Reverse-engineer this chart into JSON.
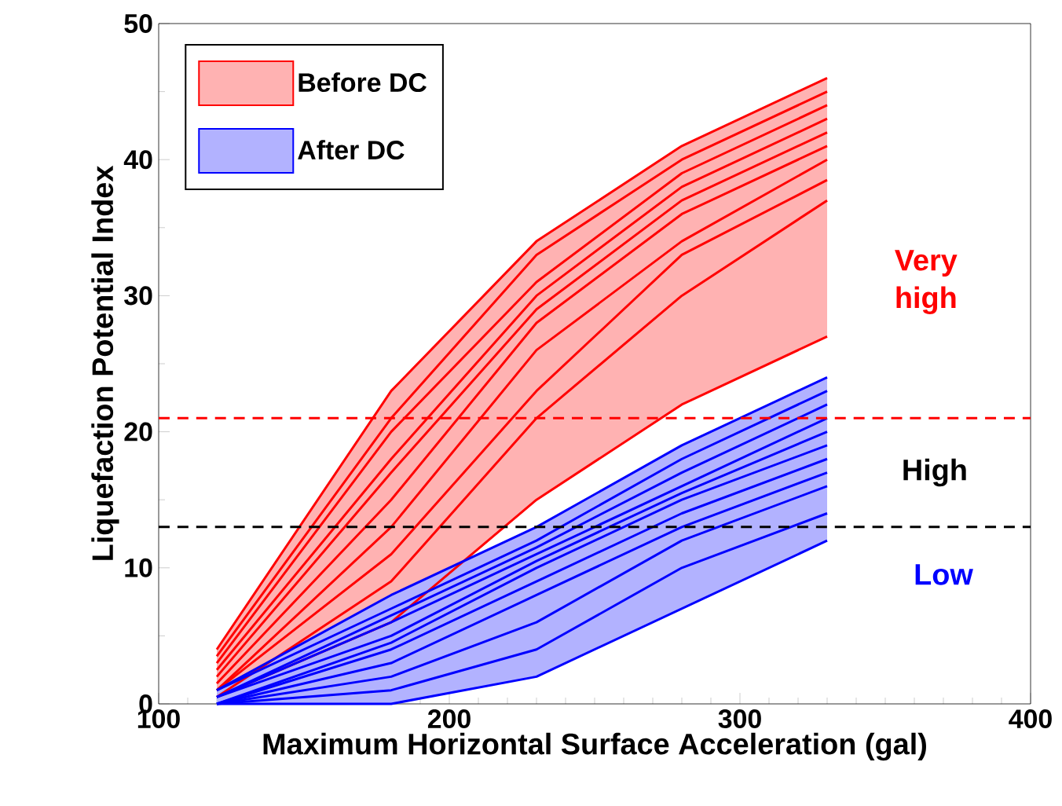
{
  "chart_data": {
    "type": "line",
    "xlabel": "Maximum Horizontal Surface Acceleration (gal)",
    "ylabel": "Liquefaction Potential Index",
    "xlim": [
      100,
      400
    ],
    "xticks": [
      100,
      200,
      300,
      400
    ],
    "ylim": [
      0,
      50
    ],
    "yticks": [
      0,
      10,
      20,
      30,
      40,
      50
    ],
    "grid": false,
    "legend": "top left",
    "marker": "none",
    "line_style": "solid",
    "x": [
      120,
      180,
      230,
      280,
      330
    ],
    "series": [
      {
        "name": "Before DC",
        "color": "#ff0000",
        "values": [
          4,
          23,
          34,
          41,
          46
        ],
        "lower": [
          0.5,
          6,
          15,
          22,
          27
        ],
        "upper": [
          4,
          23,
          34,
          41,
          46
        ]
      },
      {
        "color": "#ff0000",
        "values": [
          3.5,
          21,
          33,
          40,
          45
        ]
      },
      {
        "color": "#ff0000",
        "values": [
          3,
          20,
          31,
          39,
          44
        ]
      },
      {
        "color": "#ff0000",
        "values": [
          2.5,
          18,
          30,
          38,
          43
        ]
      },
      {
        "color": "#ff0000",
        "values": [
          2,
          17,
          29,
          37,
          42
        ]
      },
      {
        "color": "#ff0000",
        "values": [
          1.5,
          15,
          28,
          36,
          41
        ]
      },
      {
        "color": "#ff0000",
        "values": [
          1,
          13,
          26,
          34,
          40
        ]
      },
      {
        "color": "#ff0000",
        "values": [
          1,
          11,
          23,
          33,
          38.5
        ]
      },
      {
        "color": "#ff0000",
        "values": [
          0.5,
          9,
          21,
          30,
          37
        ]
      },
      {
        "color": "#ff0000",
        "values": [
          0.5,
          6,
          15,
          22,
          27
        ]
      },
      {
        "name": "After DC",
        "color": "#0000ff",
        "values": [
          1,
          8,
          13,
          19,
          24
        ],
        "lower": [
          0,
          0,
          2,
          7,
          12
        ],
        "upper": [
          1,
          8,
          13,
          19,
          24
        ]
      },
      {
        "color": "#0000ff",
        "values": [
          1,
          7,
          12,
          18,
          23
        ]
      },
      {
        "color": "#0000ff",
        "values": [
          0.5,
          6.5,
          11.5,
          17,
          22
        ]
      },
      {
        "color": "#0000ff",
        "values": [
          0.5,
          6,
          11,
          16,
          21
        ]
      },
      {
        "color": "#0000ff",
        "values": [
          0.5,
          5,
          10.5,
          15.5,
          20
        ]
      },
      {
        "color": "#0000ff",
        "values": [
          0,
          4.5,
          10,
          15,
          19
        ]
      },
      {
        "color": "#0000ff",
        "values": [
          0,
          4,
          9,
          14,
          18
        ]
      },
      {
        "color": "#0000ff",
        "values": [
          0,
          3,
          8,
          13,
          17
        ]
      },
      {
        "color": "#0000ff",
        "values": [
          0,
          2,
          6,
          12,
          16
        ]
      },
      {
        "color": "#0000ff",
        "values": [
          0,
          1,
          4,
          10,
          14
        ]
      },
      {
        "color": "#0000ff",
        "values": [
          0,
          0,
          2,
          7,
          12
        ]
      }
    ],
    "ref_lines": [
      {
        "axis": "y",
        "value": 21,
        "color": "#ff0000",
        "line_style": "dashed"
      },
      {
        "axis": "y",
        "value": 13,
        "color": "#000000",
        "line_style": "dashed"
      }
    ],
    "annotations": [
      "Very high",
      "High",
      "Low"
    ]
  }
}
